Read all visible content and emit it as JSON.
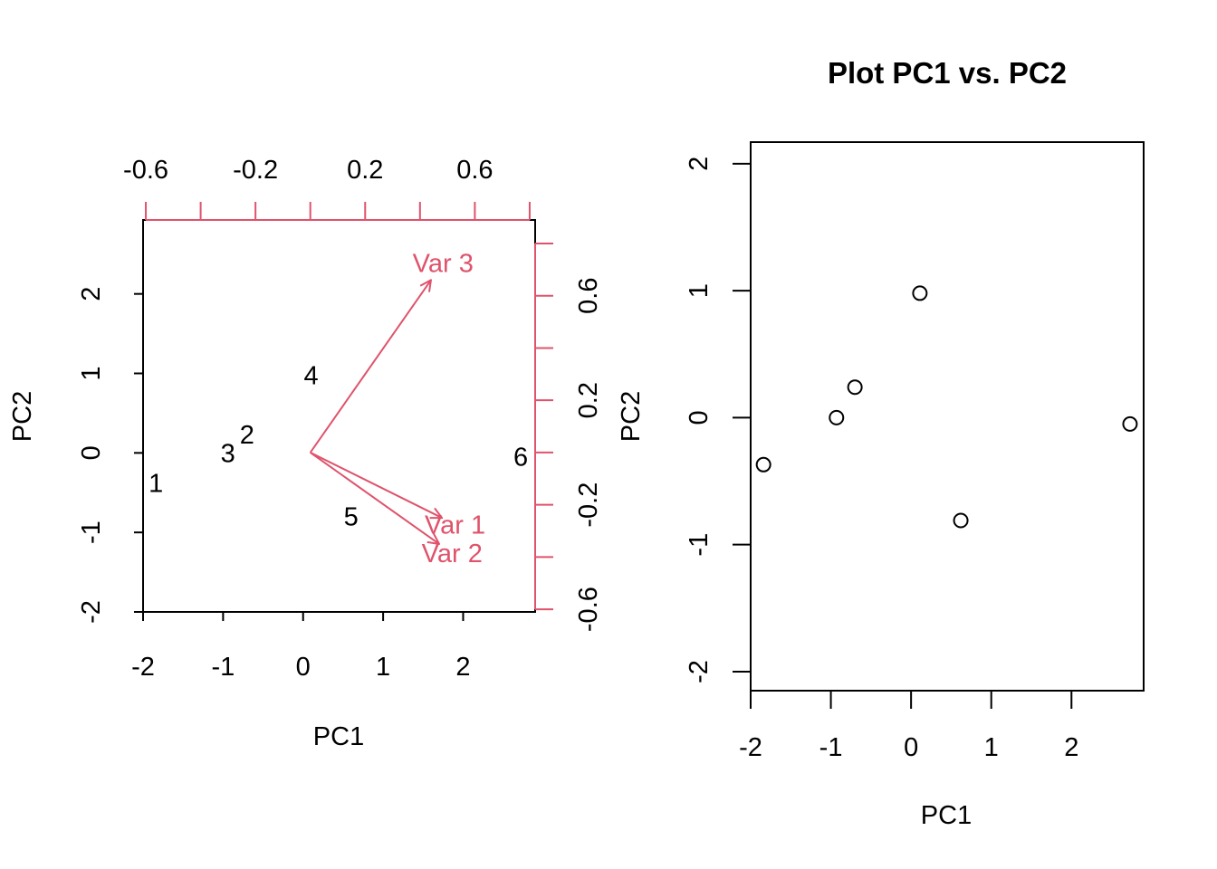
{
  "colors": {
    "axis": "#000000",
    "loadings": "#DF536B"
  },
  "chart_data": [
    {
      "type": "biplot",
      "title": "",
      "xlabel": "PC1",
      "ylabel": "PC2",
      "xlim": [
        -2,
        2.9
      ],
      "ylim": [
        -2,
        2.93
      ],
      "xticks": [
        -2,
        -1,
        0,
        1,
        2
      ],
      "yticks": [
        -2,
        -1,
        0,
        1,
        2
      ],
      "top_axis": {
        "lim": [
          -0.61,
          0.82
        ],
        "ticks": [
          -0.6,
          -0.4,
          -0.2,
          0,
          0.2,
          0.4,
          0.6,
          0.8
        ],
        "labels": [
          "-0.6",
          "-0.2",
          "0.2",
          "0.6"
        ]
      },
      "right_axis": {
        "lim": [
          -0.61,
          0.89
        ],
        "ticks": [
          -0.6,
          -0.4,
          -0.2,
          0,
          0.2,
          0.4,
          0.6,
          0.8
        ],
        "labels": [
          "-0.6",
          "-0.2",
          "0.2",
          "0.6"
        ]
      },
      "observations": [
        {
          "label": "1",
          "x": -1.84,
          "y": -0.38
        },
        {
          "label": "2",
          "x": -0.7,
          "y": 0.23
        },
        {
          "label": "3",
          "x": -0.94,
          "y": 0.0
        },
        {
          "label": "4",
          "x": 0.1,
          "y": 0.98
        },
        {
          "label": "5",
          "x": 0.6,
          "y": -0.8
        },
        {
          "label": "6",
          "x": 2.72,
          "y": -0.05
        }
      ],
      "loadings": [
        {
          "name": "Var 1",
          "x": 0.48,
          "y": -0.25
        },
        {
          "name": "Var 2",
          "x": 0.47,
          "y": -0.35
        },
        {
          "name": "Var 3",
          "x": 0.44,
          "y": 0.66
        }
      ]
    },
    {
      "type": "scatter",
      "title": "Plot PC1 vs. PC2",
      "xlabel": "PC1",
      "ylabel": "PC2",
      "xlim": [
        -2,
        2.9
      ],
      "ylim": [
        -2.15,
        2.17
      ],
      "xticks": [
        -2,
        -1,
        0,
        1,
        2
      ],
      "yticks": [
        -2,
        -1,
        0,
        1,
        2
      ],
      "points": [
        {
          "x": -1.84,
          "y": -0.37
        },
        {
          "x": -0.93,
          "y": 0.0
        },
        {
          "x": -0.7,
          "y": 0.24
        },
        {
          "x": 0.11,
          "y": 0.98
        },
        {
          "x": 0.62,
          "y": -0.81
        },
        {
          "x": 2.73,
          "y": -0.05
        }
      ]
    }
  ]
}
